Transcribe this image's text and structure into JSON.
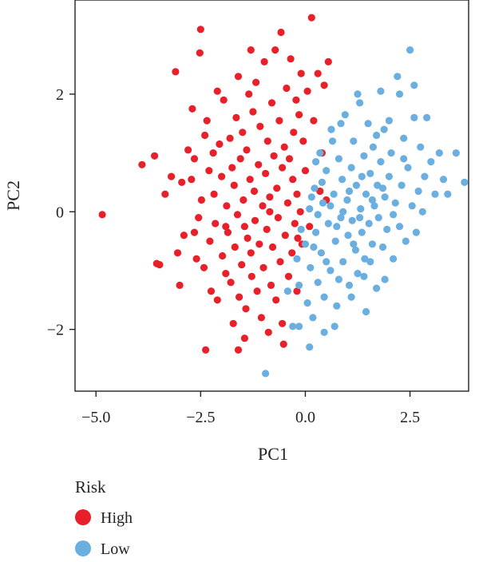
{
  "chart_data": {
    "type": "scatter",
    "xlabel": "PC1",
    "ylabel": "PC2",
    "xlim": [
      -5.5,
      3.9
    ],
    "ylim": [
      -3.05,
      3.6
    ],
    "xticks": [
      -5.0,
      -2.5,
      0.0,
      2.5
    ],
    "xtick_labels": [
      "−5.0",
      "−2.5",
      "0.0",
      "2.5"
    ],
    "yticks": [
      -2,
      0,
      2
    ],
    "ytick_labels": [
      "−2",
      "0",
      "2"
    ],
    "grid": false,
    "legend": {
      "title": "Risk",
      "placement": "bottom-left-outside",
      "entries": [
        "High",
        "Low"
      ]
    },
    "series": [
      {
        "name": "High",
        "color": "#e8202a",
        "points": [
          [
            -4.85,
            -0.05
          ],
          [
            -3.9,
            0.8
          ],
          [
            -3.6,
            0.95
          ],
          [
            -3.55,
            -0.88
          ],
          [
            -3.48,
            -0.9
          ],
          [
            -3.2,
            0.6
          ],
          [
            -3.1,
            2.38
          ],
          [
            -3.05,
            -0.7
          ],
          [
            -3.0,
            -1.25
          ],
          [
            -2.95,
            0.5
          ],
          [
            -2.9,
            -0.4
          ],
          [
            -2.8,
            1.05
          ],
          [
            -2.72,
            0.55
          ],
          [
            -2.7,
            1.75
          ],
          [
            -2.65,
            0.9
          ],
          [
            -2.6,
            -0.8
          ],
          [
            -2.55,
            -0.1
          ],
          [
            -2.52,
            2.7
          ],
          [
            -2.5,
            3.1
          ],
          [
            -2.48,
            0.2
          ],
          [
            -2.42,
            -0.95
          ],
          [
            -2.4,
            1.3
          ],
          [
            -2.38,
            -2.35
          ],
          [
            -2.35,
            1.55
          ],
          [
            -2.3,
            0.7
          ],
          [
            -2.28,
            -0.5
          ],
          [
            -2.25,
            -1.35
          ],
          [
            -2.2,
            1.0
          ],
          [
            -2.18,
            0.3
          ],
          [
            -2.15,
            -0.2
          ],
          [
            -2.1,
            -1.5
          ],
          [
            -2.05,
            1.15
          ],
          [
            -2.0,
            0.6
          ],
          [
            -1.98,
            -0.75
          ],
          [
            -1.95,
            1.9
          ],
          [
            -1.9,
            -1.05
          ],
          [
            -1.88,
            0.1
          ],
          [
            -1.85,
            -0.35
          ],
          [
            -1.8,
            1.25
          ],
          [
            -1.78,
            -1.2
          ],
          [
            -1.75,
            0.75
          ],
          [
            -1.72,
            -1.9
          ],
          [
            -1.7,
            0.45
          ],
          [
            -1.68,
            -0.6
          ],
          [
            -1.65,
            1.6
          ],
          [
            -1.62,
            -0.05
          ],
          [
            -1.6,
            2.3
          ],
          [
            -1.58,
            -1.45
          ],
          [
            -1.55,
            0.9
          ],
          [
            -1.52,
            -0.9
          ],
          [
            -1.5,
            1.35
          ],
          [
            -1.48,
            0.2
          ],
          [
            -1.45,
            -0.25
          ],
          [
            -1.42,
            -1.65
          ],
          [
            -1.4,
            1.05
          ],
          [
            -1.38,
            -0.45
          ],
          [
            -1.35,
            2.0
          ],
          [
            -1.32,
            0.55
          ],
          [
            -1.3,
            -0.7
          ],
          [
            -1.28,
            -1.1
          ],
          [
            -1.25,
            1.7
          ],
          [
            -1.22,
            0.35
          ],
          [
            -1.2,
            -0.15
          ],
          [
            -1.18,
            2.2
          ],
          [
            -1.15,
            -1.35
          ],
          [
            -1.12,
            0.8
          ],
          [
            -1.1,
            -0.55
          ],
          [
            -1.08,
            1.45
          ],
          [
            -1.05,
            -1.8
          ],
          [
            -1.02,
            0.1
          ],
          [
            -1.0,
            -0.95
          ],
          [
            -0.98,
            2.55
          ],
          [
            -0.95,
            0.65
          ],
          [
            -0.92,
            -0.3
          ],
          [
            -0.9,
            1.2
          ],
          [
            -0.88,
            -2.05
          ],
          [
            -0.85,
            0.25
          ],
          [
            -0.82,
            -1.25
          ],
          [
            -0.8,
            1.85
          ],
          [
            -0.78,
            -0.6
          ],
          [
            -0.75,
            0.95
          ],
          [
            -0.72,
            2.75
          ],
          [
            -0.7,
            -1.5
          ],
          [
            -0.68,
            0.4
          ],
          [
            -0.65,
            -0.1
          ],
          [
            -0.62,
            1.55
          ],
          [
            -0.6,
            -0.85
          ],
          [
            -0.58,
            3.05
          ],
          [
            -0.55,
            0.75
          ],
          [
            -0.52,
            -2.25
          ],
          [
            -0.5,
            1.1
          ],
          [
            -0.48,
            -0.4
          ],
          [
            -0.45,
            2.1
          ],
          [
            -0.42,
            0.15
          ],
          [
            -0.4,
            -1.1
          ],
          [
            -0.38,
            0.9
          ],
          [
            -0.35,
            2.6
          ],
          [
            -0.32,
            -0.7
          ],
          [
            -0.3,
            0.55
          ],
          [
            -0.28,
            1.35
          ],
          [
            -0.25,
            -0.2
          ],
          [
            -0.22,
            1.9
          ],
          [
            -0.2,
            0.3
          ],
          [
            -0.18,
            -0.45
          ],
          [
            -0.15,
            1.65
          ],
          [
            -0.12,
            0.0
          ],
          [
            -0.1,
            2.35
          ],
          [
            -0.08,
            -0.55
          ],
          [
            -0.05,
            1.2
          ],
          [
            0.0,
            0.7
          ],
          [
            0.05,
            2.05
          ],
          [
            0.1,
            -0.25
          ],
          [
            0.15,
            3.3
          ],
          [
            0.2,
            1.55
          ],
          [
            0.3,
            2.35
          ],
          [
            0.35,
            0.35
          ],
          [
            0.4,
            1.0
          ],
          [
            0.45,
            2.15
          ],
          [
            0.5,
            0.2
          ],
          [
            0.55,
            2.55
          ],
          [
            -1.45,
            -2.15
          ],
          [
            -1.6,
            -2.35
          ],
          [
            -0.55,
            -1.9
          ],
          [
            -1.9,
            -0.25
          ],
          [
            -2.65,
            -0.35
          ],
          [
            -3.35,
            0.3
          ],
          [
            -2.1,
            2.05
          ],
          [
            -1.3,
            2.75
          ],
          [
            -0.2,
            -1.35
          ],
          [
            -0.85,
            0.0
          ]
        ]
      },
      {
        "name": "Low",
        "color": "#6baee0",
        "points": [
          [
            -0.95,
            -2.75
          ],
          [
            -0.42,
            -1.35
          ],
          [
            -0.3,
            -1.95
          ],
          [
            -0.2,
            -0.8
          ],
          [
            -0.15,
            -1.25
          ],
          [
            -0.1,
            -0.3
          ],
          [
            0.0,
            -0.55
          ],
          [
            0.05,
            -1.55
          ],
          [
            0.1,
            0.05
          ],
          [
            0.12,
            -0.95
          ],
          [
            0.18,
            -1.8
          ],
          [
            0.22,
            0.4
          ],
          [
            0.25,
            -0.35
          ],
          [
            0.3,
            -1.2
          ],
          [
            0.35,
            1.0
          ],
          [
            0.38,
            -0.7
          ],
          [
            0.42,
            0.15
          ],
          [
            0.45,
            -1.45
          ],
          [
            0.5,
            0.7
          ],
          [
            0.55,
            -0.2
          ],
          [
            0.6,
            -1.0
          ],
          [
            0.62,
            1.4
          ],
          [
            0.68,
            0.3
          ],
          [
            0.72,
            -0.5
          ],
          [
            0.75,
            -1.6
          ],
          [
            0.8,
            0.9
          ],
          [
            0.85,
            -0.1
          ],
          [
            0.88,
            0.55
          ],
          [
            0.9,
            -0.85
          ],
          [
            0.95,
            1.65
          ],
          [
            1.0,
            0.2
          ],
          [
            1.02,
            -0.4
          ],
          [
            1.05,
            -1.25
          ],
          [
            1.1,
            0.75
          ],
          [
            1.12,
            -0.15
          ],
          [
            1.15,
            1.2
          ],
          [
            1.2,
            -0.65
          ],
          [
            1.22,
            0.45
          ],
          [
            1.25,
            -1.05
          ],
          [
            1.3,
            1.85
          ],
          [
            1.32,
            0.05
          ],
          [
            1.35,
            -0.35
          ],
          [
            1.4,
            0.95
          ],
          [
            1.42,
            -0.8
          ],
          [
            1.45,
            0.3
          ],
          [
            1.5,
            1.5
          ],
          [
            1.52,
            -0.2
          ],
          [
            1.55,
            0.65
          ],
          [
            1.6,
            -0.55
          ],
          [
            1.62,
            1.1
          ],
          [
            1.65,
            0.1
          ],
          [
            1.7,
            -1.3
          ],
          [
            1.72,
            0.45
          ],
          [
            1.75,
            -0.1
          ],
          [
            1.8,
            0.85
          ],
          [
            1.85,
            -0.6
          ],
          [
            1.88,
            1.4
          ],
          [
            1.9,
            0.25
          ],
          [
            1.95,
            -0.3
          ],
          [
            2.0,
            0.6
          ],
          [
            2.05,
            1.0
          ],
          [
            2.1,
            -0.8
          ],
          [
            2.15,
            0.15
          ],
          [
            2.2,
            2.3
          ],
          [
            2.25,
            -0.25
          ],
          [
            2.3,
            0.45
          ],
          [
            2.35,
            1.25
          ],
          [
            2.4,
            -0.5
          ],
          [
            2.45,
            0.75
          ],
          [
            2.5,
            2.75
          ],
          [
            2.55,
            0.1
          ],
          [
            2.6,
            1.6
          ],
          [
            2.65,
            -0.35
          ],
          [
            2.7,
            0.35
          ],
          [
            2.75,
            1.1
          ],
          [
            2.8,
            0.0
          ],
          [
            2.85,
            0.6
          ],
          [
            2.9,
            1.6
          ],
          [
            3.0,
            0.85
          ],
          [
            3.1,
            0.3
          ],
          [
            3.2,
            1.0
          ],
          [
            3.3,
            0.55
          ],
          [
            3.4,
            0.3
          ],
          [
            3.6,
            1.0
          ],
          [
            3.8,
            0.5
          ],
          [
            1.25,
            2.0
          ],
          [
            1.8,
            2.05
          ],
          [
            2.25,
            2.0
          ],
          [
            2.6,
            2.15
          ],
          [
            0.85,
            1.5
          ],
          [
            0.45,
            -2.05
          ],
          [
            0.1,
            -2.3
          ],
          [
            -0.15,
            -1.95
          ],
          [
            0.7,
            -1.95
          ],
          [
            1.45,
            -1.7
          ],
          [
            1.9,
            -1.15
          ],
          [
            0.3,
            -0.05
          ],
          [
            0.6,
            0.1
          ],
          [
            0.9,
            0.0
          ],
          [
            1.15,
            -0.55
          ],
          [
            1.35,
            0.6
          ],
          [
            1.6,
            0.2
          ],
          [
            1.85,
            0.4
          ],
          [
            2.1,
            -0.05
          ],
          [
            0.4,
            0.5
          ],
          [
            0.75,
            -0.25
          ],
          [
            1.05,
            0.35
          ],
          [
            1.3,
            -0.1
          ],
          [
            1.55,
            -0.85
          ],
          [
            0.2,
            -0.6
          ],
          [
            0.5,
            -0.85
          ],
          [
            0.8,
            -1.15
          ],
          [
            1.1,
            -1.45
          ],
          [
            0.15,
            0.25
          ],
          [
            2.35,
            0.9
          ],
          [
            2.0,
            1.55
          ],
          [
            1.7,
            1.3
          ],
          [
            0.65,
            1.2
          ],
          [
            0.25,
            0.85
          ],
          [
            1.4,
            -1.1
          ]
        ]
      }
    ]
  }
}
